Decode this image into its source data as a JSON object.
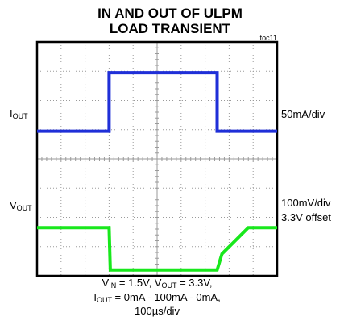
{
  "title": {
    "line1": "IN AND OUT OF ULPM",
    "line2": "LOAD TRANSIENT"
  },
  "figure_tag": "toc11",
  "labels": {
    "iout_main": "I",
    "iout_sub": "OUT",
    "vout_main": "V",
    "vout_sub": "OUT",
    "iout_scale": "50mA/div",
    "vout_scale": "100mV/div",
    "vout_offset": "3.3V offset"
  },
  "conditions": {
    "vin_main": "V",
    "vin_sub": "IN",
    "vin_val": " = 1.5V, ",
    "vout_main": "V",
    "vout_sub": "OUT",
    "vout_val": " = 3.3V,",
    "iout_main": "I",
    "iout_sub": "OUT",
    "iout_val": " = 0mA - 100mA - 0mA,",
    "timebase": "100µs/div"
  },
  "colors": {
    "iout": "#1f2fd8",
    "vout": "#18e81c",
    "grid": "#9a9a9a",
    "frame": "#000000"
  },
  "chart_data": {
    "type": "line",
    "grid": {
      "x_divisions": 10,
      "y_divisions": 8
    },
    "x_unit": "µs",
    "xlim": [
      0,
      1000
    ],
    "series": [
      {
        "name": "IOUT",
        "unit": "mA",
        "scale_per_div": 50,
        "x": [
          0,
          300,
          300,
          750,
          750,
          1000
        ],
        "y": [
          0,
          0,
          100,
          100,
          0,
          0
        ]
      },
      {
        "name": "VOUT",
        "unit": "mV",
        "scale_per_div": 100,
        "x": [
          0,
          300,
          305,
          750,
          770,
          880,
          1000
        ],
        "y": [
          0,
          0,
          -145,
          -145,
          -90,
          0,
          0
        ]
      }
    ]
  }
}
